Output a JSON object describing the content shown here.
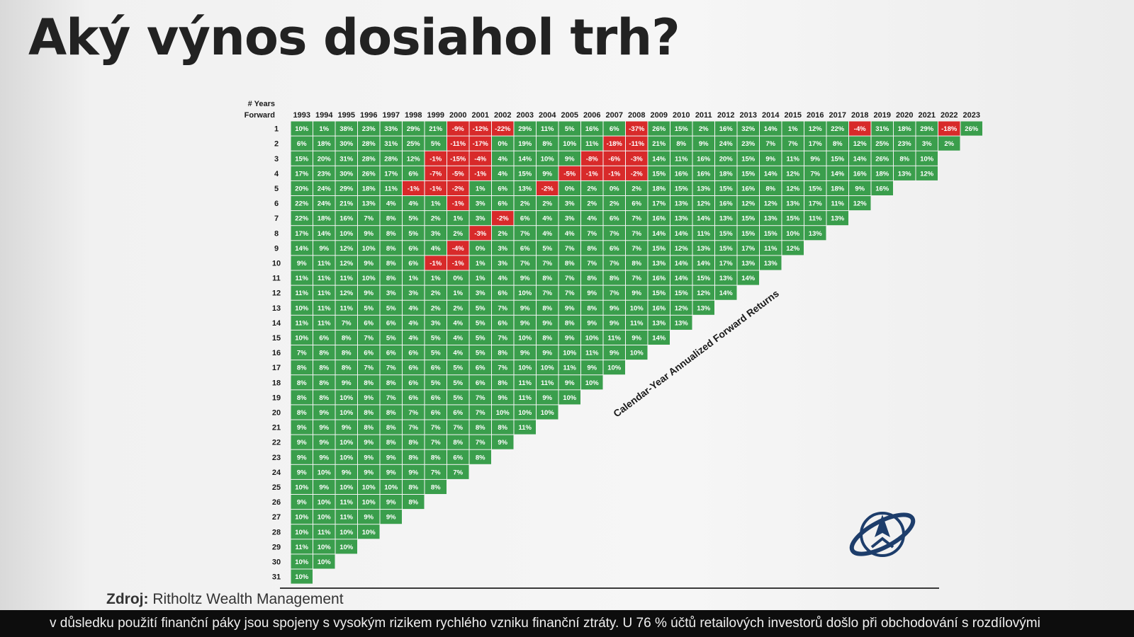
{
  "title": "Aký výnos dosiahol trh?",
  "source": {
    "label": "Zdroj:",
    "name": "Ritholtz Wealth Management"
  },
  "footer_text": "v důsledku použití finanční páky jsou spojeny s vysokým rizikem rychlého vzniku finanční ztráty. U 76 % účtů retailových investorů došlo při obchodování s rozdílovými",
  "colors": {
    "positive": "#3a9e4c",
    "negative": "#d82a2a",
    "text": "#ffffff",
    "axis": "#1a1a1a"
  },
  "chart_data": {
    "type": "heatmap",
    "title": "",
    "annotation": "Calendar-Year Annualized Forward Returns",
    "row_header": "# Years Forward",
    "years": [
      1993,
      1994,
      1995,
      1996,
      1997,
      1998,
      1999,
      2000,
      2001,
      2002,
      2003,
      2004,
      2005,
      2006,
      2007,
      2008,
      2009,
      2010,
      2011,
      2012,
      2013,
      2014,
      2015,
      2016,
      2017,
      2018,
      2019,
      2020,
      2021,
      2022,
      2023
    ],
    "forward_years": [
      1,
      2,
      3,
      4,
      5,
      6,
      7,
      8,
      9,
      10,
      11,
      12,
      13,
      14,
      15,
      16,
      17,
      18,
      19,
      20,
      21,
      22,
      23,
      24,
      25,
      26,
      27,
      28,
      29,
      30,
      31
    ],
    "unit": "%",
    "rows": [
      [
        10,
        1,
        38,
        23,
        33,
        29,
        21,
        -9,
        -12,
        -22,
        29,
        11,
        5,
        16,
        6,
        -37,
        26,
        15,
        2,
        16,
        32,
        14,
        1,
        12,
        22,
        -4,
        31,
        18,
        29,
        -18,
        26
      ],
      [
        6,
        18,
        30,
        28,
        31,
        25,
        5,
        -11,
        -17,
        0,
        19,
        8,
        10,
        11,
        -18,
        -11,
        21,
        8,
        9,
        24,
        23,
        7,
        7,
        17,
        8,
        12,
        25,
        23,
        3,
        2
      ],
      [
        15,
        20,
        31,
        28,
        28,
        12,
        -1,
        -15,
        -4,
        4,
        14,
        10,
        9,
        -8,
        -6,
        -3,
        14,
        11,
        16,
        20,
        15,
        9,
        11,
        9,
        15,
        14,
        26,
        8,
        10
      ],
      [
        17,
        23,
        30,
        26,
        17,
        6,
        -7,
        -5,
        -1,
        4,
        15,
        9,
        -5,
        -1,
        -1,
        -2,
        15,
        16,
        16,
        18,
        15,
        14,
        12,
        7,
        14,
        16,
        18,
        13,
        12
      ],
      [
        20,
        24,
        29,
        18,
        11,
        -1,
        -1,
        -2,
        1,
        6,
        13,
        -2,
        0,
        2,
        0,
        2,
        18,
        15,
        13,
        15,
        16,
        8,
        12,
        15,
        18,
        9,
        16
      ],
      [
        22,
        24,
        21,
        13,
        4,
        4,
        1,
        -1,
        3,
        6,
        2,
        2,
        3,
        2,
        2,
        6,
        17,
        13,
        12,
        16,
        12,
        12,
        13,
        17,
        11,
        12
      ],
      [
        22,
        18,
        16,
        7,
        8,
        5,
        2,
        1,
        3,
        -2,
        6,
        4,
        3,
        4,
        6,
        7,
        16,
        13,
        14,
        13,
        15,
        13,
        15,
        11,
        13
      ],
      [
        17,
        14,
        10,
        9,
        8,
        5,
        3,
        2,
        -3,
        2,
        7,
        4,
        4,
        7,
        7,
        7,
        14,
        14,
        11,
        15,
        15,
        15,
        10,
        13
      ],
      [
        14,
        9,
        12,
        10,
        8,
        6,
        4,
        -4,
        0,
        3,
        6,
        5,
        7,
        8,
        6,
        7,
        15,
        12,
        13,
        15,
        17,
        11,
        12
      ],
      [
        9,
        11,
        12,
        9,
        8,
        6,
        -1,
        -1,
        1,
        3,
        7,
        7,
        8,
        7,
        7,
        8,
        13,
        14,
        14,
        17,
        13,
        13
      ],
      [
        11,
        11,
        11,
        10,
        8,
        1,
        1,
        0,
        1,
        4,
        9,
        8,
        7,
        8,
        8,
        7,
        16,
        14,
        15,
        13,
        14
      ],
      [
        11,
        11,
        12,
        9,
        3,
        3,
        2,
        1,
        3,
        6,
        10,
        7,
        7,
        9,
        7,
        9,
        15,
        15,
        12,
        14
      ],
      [
        10,
        11,
        11,
        5,
        5,
        4,
        2,
        2,
        5,
        7,
        9,
        8,
        9,
        8,
        9,
        10,
        16,
        12,
        13
      ],
      [
        11,
        11,
        7,
        6,
        6,
        4,
        3,
        4,
        5,
        6,
        9,
        9,
        8,
        9,
        9,
        11,
        13,
        13
      ],
      [
        10,
        6,
        8,
        7,
        5,
        4,
        5,
        4,
        5,
        7,
        10,
        8,
        9,
        10,
        11,
        9,
        14
      ],
      [
        7,
        8,
        8,
        6,
        6,
        6,
        5,
        4,
        5,
        8,
        9,
        9,
        10,
        11,
        9,
        10
      ],
      [
        8,
        8,
        8,
        7,
        7,
        6,
        6,
        5,
        6,
        7,
        10,
        10,
        11,
        9,
        10
      ],
      [
        8,
        8,
        9,
        8,
        8,
        6,
        5,
        5,
        6,
        8,
        11,
        11,
        9,
        10
      ],
      [
        8,
        8,
        10,
        9,
        7,
        6,
        6,
        5,
        7,
        9,
        11,
        9,
        10
      ],
      [
        8,
        9,
        10,
        8,
        8,
        7,
        6,
        6,
        7,
        10,
        10,
        10
      ],
      [
        9,
        9,
        9,
        8,
        8,
        7,
        7,
        7,
        8,
        8,
        11
      ],
      [
        9,
        9,
        10,
        9,
        8,
        8,
        7,
        8,
        7,
        9
      ],
      [
        9,
        9,
        10,
        9,
        9,
        8,
        8,
        6,
        8
      ],
      [
        9,
        10,
        9,
        9,
        9,
        9,
        7,
        7
      ],
      [
        10,
        9,
        10,
        10,
        10,
        8,
        8
      ],
      [
        9,
        10,
        11,
        10,
        9,
        8
      ],
      [
        10,
        10,
        11,
        9,
        9
      ],
      [
        10,
        11,
        10,
        10
      ],
      [
        11,
        10,
        10
      ],
      [
        10,
        10
      ],
      [
        10
      ]
    ]
  }
}
